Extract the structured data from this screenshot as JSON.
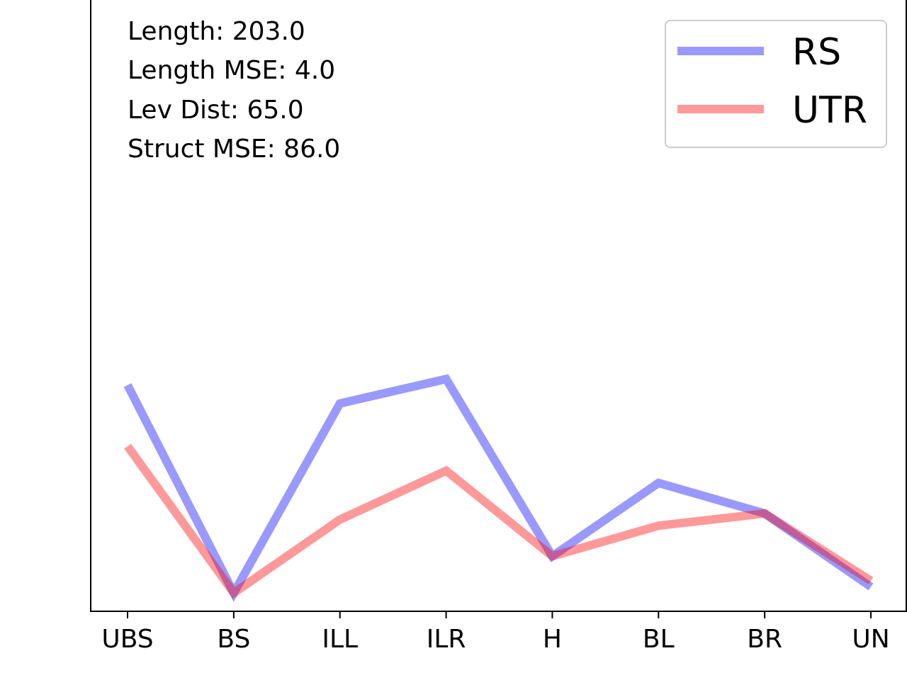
{
  "chart_data": {
    "type": "line",
    "title": "",
    "xlabel": "",
    "ylabel": "",
    "categories": [
      "UBS",
      "BS",
      "ILL",
      "ILR",
      "H",
      "BL",
      "BR",
      "UN"
    ],
    "ylim": [
      0,
      1
    ],
    "y_ticks_visible": false,
    "grid": false,
    "legend_position": "top-right",
    "annotations": [
      "Length: 203.0",
      "Length MSE: 4.0",
      "Lev Dist: 65.0",
      "Struct MSE: 86.0"
    ],
    "series": [
      {
        "name": "RS",
        "color": "#0000ff",
        "opacity": 0.4,
        "values": [
          0.37,
          0.03,
          0.34,
          0.38,
          0.09,
          0.21,
          0.16,
          0.04
        ]
      },
      {
        "name": "UTR",
        "color": "#ff0000",
        "opacity": 0.4,
        "values": [
          0.27,
          0.03,
          0.15,
          0.23,
          0.09,
          0.14,
          0.16,
          0.05
        ]
      }
    ]
  }
}
